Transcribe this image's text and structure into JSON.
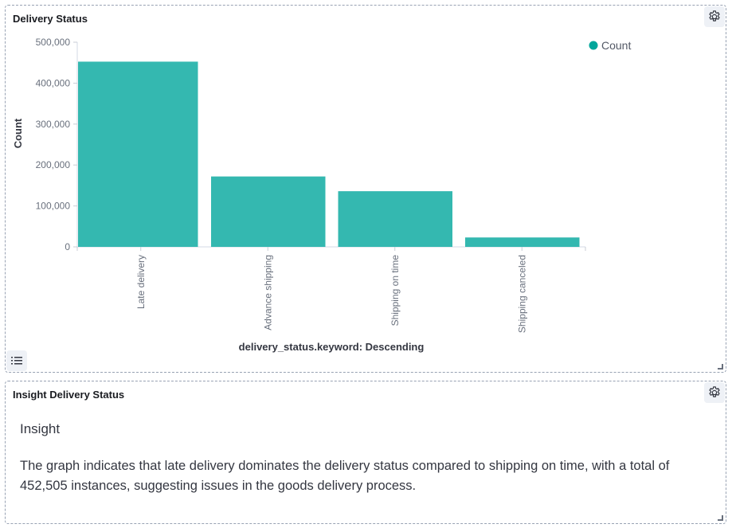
{
  "panel1": {
    "title": "Delivery Status",
    "settings_icon": "gear-icon",
    "legend_toggle_icon": "list-icon"
  },
  "chart_data": {
    "type": "bar",
    "categories": [
      "Late delivery",
      "Advance shipping",
      "Shipping on time",
      "Shipping canceled"
    ],
    "series": [
      {
        "name": "Count",
        "values": [
          452505,
          172000,
          136000,
          23000
        ],
        "color": "#34b8b0"
      }
    ],
    "y_ticks": [
      0,
      100000,
      200000,
      300000,
      400000,
      500000
    ],
    "y_tick_labels": [
      "0",
      "100,000",
      "200,000",
      "300,000",
      "400,000",
      "500,000"
    ],
    "ylim": [
      0,
      500000
    ],
    "ylabel": "Count",
    "xlabel": "delivery_status.keyword: Descending",
    "legend": {
      "label": "Count",
      "color": "#00a69b",
      "placement": "top-right"
    },
    "grid": false
  },
  "panel2": {
    "title": "Insight Delivery Status",
    "settings_icon": "gear-icon",
    "heading": "Insight",
    "body": "The graph indicates that late delivery dominates the delivery status compared to shipping on time, with a total of 452,505 instances, suggesting issues in the goods delivery process."
  }
}
